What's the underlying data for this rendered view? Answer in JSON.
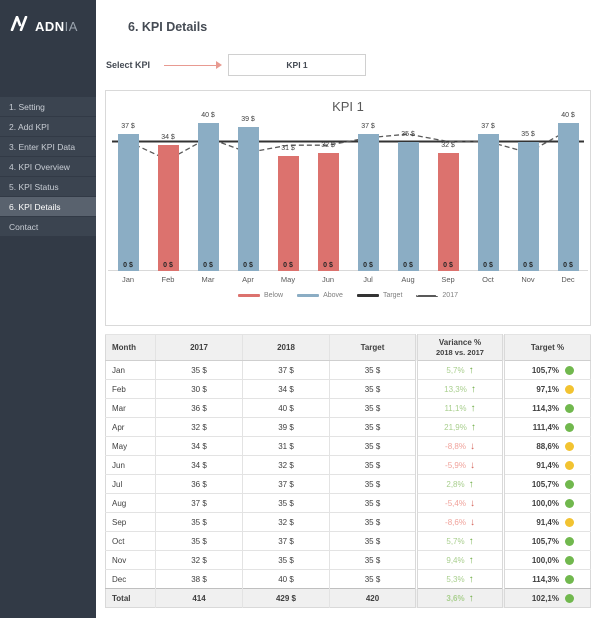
{
  "sidebar": {
    "logo": {
      "bold": "ADN",
      "light": "IA"
    },
    "items": [
      {
        "label": "1. Setting",
        "active": false
      },
      {
        "label": "2. Add KPI",
        "active": false
      },
      {
        "label": "3. Enter KPI Data",
        "active": false
      },
      {
        "label": "4. KPI Overview",
        "active": false
      },
      {
        "label": "5. KPI Status",
        "active": false
      },
      {
        "label": "6. KPI Details",
        "active": true
      },
      {
        "label": "Contact",
        "active": false
      }
    ]
  },
  "header": {
    "title": "6. KPI Details"
  },
  "kpi_selector": {
    "label": "Select KPI",
    "value": "KPI 1"
  },
  "chart_data": {
    "type": "bar",
    "title": "KPI 1",
    "categories": [
      "Jan",
      "Feb",
      "Mar",
      "Apr",
      "May",
      "Jun",
      "Jul",
      "Aug",
      "Sep",
      "Oct",
      "Nov",
      "Dec"
    ],
    "series": [
      {
        "name": "2018",
        "type": "bar",
        "values": [
          37,
          34,
          40,
          39,
          31,
          32,
          37,
          35,
          32,
          37,
          35,
          40
        ]
      },
      {
        "name": "2017",
        "type": "dashed-line",
        "values": [
          35,
          30,
          36,
          32,
          34,
          34,
          36,
          37,
          35,
          35,
          32,
          38
        ]
      },
      {
        "name": "Target",
        "type": "solid-line",
        "values": [
          35,
          35,
          35,
          35,
          35,
          35,
          35,
          35,
          35,
          35,
          35,
          35
        ]
      }
    ],
    "target_value": 35,
    "value_suffix": " $",
    "bar_base_label": "0 $",
    "ylim": [
      0,
      42
    ],
    "legend": [
      {
        "label": "Below",
        "style": "solid",
        "color": "#dc726e"
      },
      {
        "label": "Above",
        "style": "solid",
        "color": "#8badc4"
      },
      {
        "label": "Target",
        "style": "solid",
        "color": "#333333"
      },
      {
        "label": "2017",
        "style": "dashed",
        "color": "#595959"
      }
    ],
    "legend_position": "bottom"
  },
  "table": {
    "columns": [
      {
        "label": "Month"
      },
      {
        "label": "2017"
      },
      {
        "label": "2018"
      },
      {
        "label": "Target"
      },
      {
        "label": "Variance %",
        "sublabel": "2018 vs. 2017"
      },
      {
        "label": "Target %"
      }
    ],
    "rows": [
      {
        "month": "Jan",
        "y2017": "35 $",
        "y2018": "37 $",
        "target": "35 $",
        "variance": "5,7%",
        "trend": "up",
        "target_pct": "105,7%",
        "status": "green",
        "is_total": false
      },
      {
        "month": "Feb",
        "y2017": "30 $",
        "y2018": "34 $",
        "target": "35 $",
        "variance": "13,3%",
        "trend": "up",
        "target_pct": "97,1%",
        "status": "yellow",
        "is_total": false
      },
      {
        "month": "Mar",
        "y2017": "36 $",
        "y2018": "40 $",
        "target": "35 $",
        "variance": "11,1%",
        "trend": "up",
        "target_pct": "114,3%",
        "status": "green",
        "is_total": false
      },
      {
        "month": "Apr",
        "y2017": "32 $",
        "y2018": "39 $",
        "target": "35 $",
        "variance": "21,9%",
        "trend": "up",
        "target_pct": "111,4%",
        "status": "green",
        "is_total": false
      },
      {
        "month": "May",
        "y2017": "34 $",
        "y2018": "31 $",
        "target": "35 $",
        "variance": "-8,8%",
        "trend": "down",
        "target_pct": "88,6%",
        "status": "yellow",
        "is_total": false
      },
      {
        "month": "Jun",
        "y2017": "34 $",
        "y2018": "32 $",
        "target": "35 $",
        "variance": "-5,9%",
        "trend": "down",
        "target_pct": "91,4%",
        "status": "yellow",
        "is_total": false
      },
      {
        "month": "Jul",
        "y2017": "36 $",
        "y2018": "37 $",
        "target": "35 $",
        "variance": "2,8%",
        "trend": "up",
        "target_pct": "105,7%",
        "status": "green",
        "is_total": false
      },
      {
        "month": "Aug",
        "y2017": "37 $",
        "y2018": "35 $",
        "target": "35 $",
        "variance": "-5,4%",
        "trend": "down",
        "target_pct": "100,0%",
        "status": "green",
        "is_total": false
      },
      {
        "month": "Sep",
        "y2017": "35 $",
        "y2018": "32 $",
        "target": "35 $",
        "variance": "-8,6%",
        "trend": "down",
        "target_pct": "91,4%",
        "status": "yellow",
        "is_total": false
      },
      {
        "month": "Oct",
        "y2017": "35 $",
        "y2018": "37 $",
        "target": "35 $",
        "variance": "5,7%",
        "trend": "up",
        "target_pct": "105,7%",
        "status": "green",
        "is_total": false
      },
      {
        "month": "Nov",
        "y2017": "32 $",
        "y2018": "35 $",
        "target": "35 $",
        "variance": "9,4%",
        "trend": "up",
        "target_pct": "100,0%",
        "status": "green",
        "is_total": false
      },
      {
        "month": "Dec",
        "y2017": "38 $",
        "y2018": "40 $",
        "target": "35 $",
        "variance": "5,3%",
        "trend": "up",
        "target_pct": "114,3%",
        "status": "green",
        "is_total": false
      },
      {
        "month": "Total",
        "y2017": "414",
        "y2018": "429 $",
        "target": "420",
        "variance": "3,6%",
        "trend": "up",
        "target_pct": "102,1%",
        "status": "green",
        "is_total": true
      }
    ]
  },
  "colors": {
    "bar_above": "#8badc4",
    "bar_below": "#dc726e",
    "target_line": "#333333",
    "prev_year_line": "#595959",
    "positive_text": "#a9cf8e",
    "positive_arrow": "#70ad47",
    "negative_text": "#f0a29b",
    "negative_arrow": "#d4655c",
    "status_green": "#71b84e",
    "status_yellow": "#f2c331",
    "accent_arrow": "#e89a91",
    "sidebar_bg": "#323a46",
    "sidebar_active_bg": "#59626e"
  },
  "glyphs": {
    "up_arrow": "↑",
    "down_arrow": "↓"
  }
}
